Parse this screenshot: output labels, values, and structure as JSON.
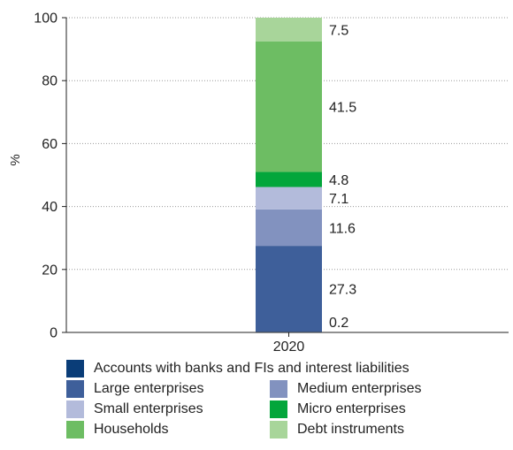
{
  "chart_data": {
    "type": "bar",
    "stacked": true,
    "categories": [
      "2020"
    ],
    "ylabel": "%",
    "ylim": [
      0,
      100
    ],
    "yticks": [
      0,
      20,
      40,
      60,
      80,
      100
    ],
    "grid": "horizontal dotted",
    "legend_position": "bottom",
    "series": [
      {
        "name": "Accounts with banks and FIs and interest liabilities",
        "values": [
          0.2
        ],
        "color": "#0a3d78"
      },
      {
        "name": "Large enterprises",
        "values": [
          27.3
        ],
        "color": "#3e5f9a"
      },
      {
        "name": "Medium enterprises",
        "values": [
          11.6
        ],
        "color": "#8292bf"
      },
      {
        "name": "Small enterprises",
        "values": [
          7.1
        ],
        "color": "#b3bbdb"
      },
      {
        "name": "Micro enterprises",
        "values": [
          4.8
        ],
        "color": "#03a63b"
      },
      {
        "name": "Households",
        "values": [
          41.5
        ],
        "color": "#6dbd63"
      },
      {
        "name": "Debt instruments",
        "values": [
          7.5
        ],
        "color": "#a8d59a"
      }
    ]
  }
}
